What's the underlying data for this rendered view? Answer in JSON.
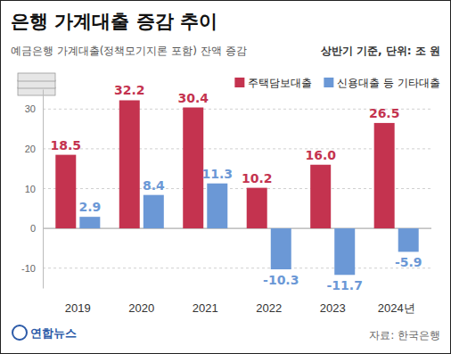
{
  "chart_data": {
    "type": "bar",
    "title": "은행 가계대출 증감 추이",
    "subtitle": "예금은행 가계대출(정책모기지론 포함) 잔액 증감",
    "note": "상반기 기준, 단위: 조 원",
    "source": "자료: 한국은행",
    "credit": "연합뉴스",
    "categories": [
      "2019",
      "2020",
      "2021",
      "2022",
      "2023",
      "2024년"
    ],
    "series": [
      {
        "name": "주택담보대출",
        "color": "#c4334f",
        "values": [
          18.5,
          32.2,
          30.4,
          10.2,
          16.0,
          26.5
        ],
        "value_labels": [
          "18.5",
          "32.2",
          "30.4",
          "10.2",
          "16.0",
          "26.5"
        ]
      },
      {
        "name": "신용대출 등 기타대출",
        "color": "#6b98d6",
        "values": [
          2.9,
          8.4,
          11.3,
          -10.3,
          -11.7,
          -5.9
        ],
        "value_labels": [
          "2.9",
          "8.4",
          "11.3",
          "-10.3",
          "-11.7",
          "-5.9"
        ]
      }
    ],
    "ylim": [
      -15,
      35
    ],
    "yticks": [
      -10,
      0,
      10,
      20,
      30
    ],
    "grid": true,
    "legend": "top-right",
    "data_labels": true
  }
}
